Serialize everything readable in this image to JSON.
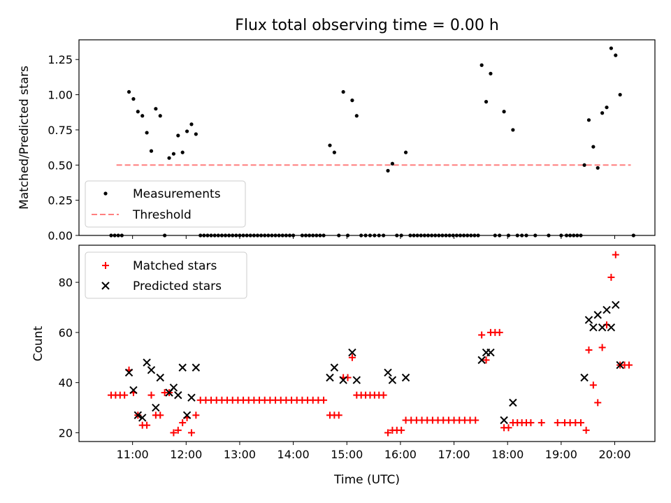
{
  "figure": {
    "title": "Flux total observing time = 0.00 h"
  },
  "chart_data": [
    {
      "type": "scatter",
      "ylabel": "Matched/Predicted stars",
      "xlabel": "",
      "x_tick_labels": [
        "11:00",
        "12:00",
        "13:00",
        "14:00",
        "15:00",
        "16:00",
        "17:00",
        "18:00",
        "19:00",
        "20:00"
      ],
      "xlim_hours": [
        10.0,
        20.75
      ],
      "ylim": [
        0.0,
        1.39
      ],
      "y_ticks": [
        "0.00",
        "0.25",
        "0.50",
        "0.75",
        "1.00",
        "1.25"
      ],
      "legend_placement": "lower-left",
      "colors": {
        "measurements": "#000000",
        "threshold": "#ff7f7f"
      },
      "threshold": {
        "name": "Threshold",
        "value": 0.5,
        "x_start": "10:42",
        "x_end": "20:18"
      },
      "series": [
        {
          "name": "Measurements",
          "points": [
            [
              "10:36",
              0
            ],
            [
              "10:40",
              0
            ],
            [
              "10:44",
              0
            ],
            [
              "10:48",
              0
            ],
            [
              "10:56",
              1.02
            ],
            [
              "11:01",
              0.97
            ],
            [
              "11:06",
              0.88
            ],
            [
              "11:11",
              0.85
            ],
            [
              "11:16",
              0.73
            ],
            [
              "11:21",
              0.6
            ],
            [
              "11:26",
              0.9
            ],
            [
              "11:31",
              0.85
            ],
            [
              "11:36",
              0
            ],
            [
              "11:41",
              0.55
            ],
            [
              "11:46",
              0.58
            ],
            [
              "11:51",
              0.71
            ],
            [
              "11:56",
              0.59
            ],
            [
              "12:01",
              0.74
            ],
            [
              "12:06",
              0.79
            ],
            [
              "12:11",
              0.72
            ],
            [
              "12:16",
              0
            ],
            [
              "12:20",
              0
            ],
            [
              "12:24",
              0
            ],
            [
              "12:28",
              0
            ],
            [
              "12:32",
              0
            ],
            [
              "12:36",
              0
            ],
            [
              "12:40",
              0
            ],
            [
              "12:44",
              0
            ],
            [
              "12:48",
              0
            ],
            [
              "12:52",
              0
            ],
            [
              "12:56",
              0
            ],
            [
              "13:00",
              0
            ],
            [
              "13:04",
              0
            ],
            [
              "13:08",
              0
            ],
            [
              "13:12",
              0
            ],
            [
              "13:16",
              0
            ],
            [
              "13:20",
              0
            ],
            [
              "13:24",
              0
            ],
            [
              "13:28",
              0
            ],
            [
              "13:32",
              0
            ],
            [
              "13:36",
              0
            ],
            [
              "13:40",
              0
            ],
            [
              "13:44",
              0
            ],
            [
              "13:48",
              0
            ],
            [
              "13:52",
              0
            ],
            [
              "13:56",
              0
            ],
            [
              "14:00",
              0
            ],
            [
              "14:10",
              0
            ],
            [
              "14:14",
              0
            ],
            [
              "14:18",
              0
            ],
            [
              "14:22",
              0
            ],
            [
              "14:26",
              0
            ],
            [
              "14:30",
              0
            ],
            [
              "14:34",
              0
            ],
            [
              "14:41",
              0.64
            ],
            [
              "14:46",
              0.59
            ],
            [
              "14:51",
              0
            ],
            [
              "14:56",
              1.02
            ],
            [
              "15:01",
              0
            ],
            [
              "15:06",
              0.96
            ],
            [
              "15:11",
              0.85
            ],
            [
              "15:16",
              0
            ],
            [
              "15:21",
              0
            ],
            [
              "15:26",
              0
            ],
            [
              "15:31",
              0
            ],
            [
              "15:36",
              0
            ],
            [
              "15:41",
              0
            ],
            [
              "15:46",
              0.46
            ],
            [
              "15:51",
              0.51
            ],
            [
              "15:56",
              0
            ],
            [
              "16:01",
              0
            ],
            [
              "16:06",
              0.59
            ],
            [
              "16:11",
              0
            ],
            [
              "16:15",
              0
            ],
            [
              "16:19",
              0
            ],
            [
              "16:23",
              0
            ],
            [
              "16:27",
              0
            ],
            [
              "16:31",
              0
            ],
            [
              "16:35",
              0
            ],
            [
              "16:39",
              0
            ],
            [
              "16:43",
              0
            ],
            [
              "16:47",
              0
            ],
            [
              "16:51",
              0
            ],
            [
              "16:55",
              0
            ],
            [
              "16:59",
              0
            ],
            [
              "17:03",
              0
            ],
            [
              "17:07",
              0
            ],
            [
              "17:11",
              0
            ],
            [
              "17:15",
              0
            ],
            [
              "17:19",
              0
            ],
            [
              "17:23",
              0
            ],
            [
              "17:27",
              0
            ],
            [
              "17:31",
              1.21
            ],
            [
              "17:36",
              0.95
            ],
            [
              "17:41",
              1.15
            ],
            [
              "17:46",
              0
            ],
            [
              "17:51",
              0
            ],
            [
              "17:56",
              0.88
            ],
            [
              "18:01",
              0
            ],
            [
              "18:06",
              0.75
            ],
            [
              "18:11",
              0
            ],
            [
              "18:16",
              0
            ],
            [
              "18:21",
              0
            ],
            [
              "18:31",
              0
            ],
            [
              "18:46",
              0
            ],
            [
              "19:00",
              0
            ],
            [
              "19:06",
              0
            ],
            [
              "19:10",
              0
            ],
            [
              "19:14",
              0
            ],
            [
              "19:18",
              0
            ],
            [
              "19:22",
              0
            ],
            [
              "19:26",
              0.5
            ],
            [
              "19:31",
              0.82
            ],
            [
              "19:36",
              0.63
            ],
            [
              "19:41",
              0.48
            ],
            [
              "19:46",
              0.87
            ],
            [
              "19:51",
              0.91
            ],
            [
              "19:56",
              1.33
            ],
            [
              "20:01",
              1.28
            ],
            [
              "20:06",
              1.0
            ],
            [
              "20:21",
              0
            ]
          ]
        }
      ]
    },
    {
      "type": "scatter",
      "ylabel": "Count",
      "xlabel": "Time (UTC)",
      "x_tick_labels": [
        "11:00",
        "12:00",
        "13:00",
        "14:00",
        "15:00",
        "16:00",
        "17:00",
        "18:00",
        "19:00",
        "20:00"
      ],
      "xlim_hours": [
        10.0,
        20.75
      ],
      "ylim": [
        16.5,
        94.8
      ],
      "y_ticks": [
        "20",
        "40",
        "60",
        "80"
      ],
      "legend_placement": "upper-left",
      "colors": {
        "matched": "#ff0000",
        "predicted": "#000000"
      },
      "series": [
        {
          "name": "Matched stars",
          "marker": "plus",
          "points": [
            [
              "10:36",
              35
            ],
            [
              "10:41",
              35
            ],
            [
              "10:46",
              35
            ],
            [
              "10:51",
              35
            ],
            [
              "10:56",
              45
            ],
            [
              "11:01",
              36
            ],
            [
              "11:06",
              27
            ],
            [
              "11:11",
              23
            ],
            [
              "11:16",
              23
            ],
            [
              "11:21",
              35
            ],
            [
              "11:26",
              27
            ],
            [
              "11:31",
              27
            ],
            [
              "11:36",
              36
            ],
            [
              "11:41",
              36
            ],
            [
              "11:46",
              20
            ],
            [
              "11:51",
              21
            ],
            [
              "11:56",
              24
            ],
            [
              "12:01",
              26
            ],
            [
              "12:06",
              20
            ],
            [
              "12:11",
              27
            ],
            [
              "12:16",
              33
            ],
            [
              "12:22",
              33
            ],
            [
              "12:28",
              33
            ],
            [
              "12:34",
              33
            ],
            [
              "12:40",
              33
            ],
            [
              "12:46",
              33
            ],
            [
              "12:52",
              33
            ],
            [
              "12:58",
              33
            ],
            [
              "13:04",
              33
            ],
            [
              "13:10",
              33
            ],
            [
              "13:16",
              33
            ],
            [
              "13:22",
              33
            ],
            [
              "13:28",
              33
            ],
            [
              "13:34",
              33
            ],
            [
              "13:40",
              33
            ],
            [
              "13:46",
              33
            ],
            [
              "13:52",
              33
            ],
            [
              "13:58",
              33
            ],
            [
              "14:04",
              33
            ],
            [
              "14:10",
              33
            ],
            [
              "14:16",
              33
            ],
            [
              "14:22",
              33
            ],
            [
              "14:28",
              33
            ],
            [
              "14:34",
              33
            ],
            [
              "14:41",
              27
            ],
            [
              "14:46",
              27
            ],
            [
              "14:51",
              27
            ],
            [
              "14:56",
              42
            ],
            [
              "15:01",
              42
            ],
            [
              "15:06",
              50
            ],
            [
              "15:11",
              35
            ],
            [
              "15:16",
              35
            ],
            [
              "15:21",
              35
            ],
            [
              "15:26",
              35
            ],
            [
              "15:31",
              35
            ],
            [
              "15:36",
              35
            ],
            [
              "15:41",
              35
            ],
            [
              "15:46",
              20
            ],
            [
              "15:51",
              21
            ],
            [
              "15:56",
              21
            ],
            [
              "16:01",
              21
            ],
            [
              "16:06",
              25
            ],
            [
              "16:12",
              25
            ],
            [
              "16:18",
              25
            ],
            [
              "16:24",
              25
            ],
            [
              "16:30",
              25
            ],
            [
              "16:36",
              25
            ],
            [
              "16:42",
              25
            ],
            [
              "16:48",
              25
            ],
            [
              "16:54",
              25
            ],
            [
              "17:00",
              25
            ],
            [
              "17:06",
              25
            ],
            [
              "17:12",
              25
            ],
            [
              "17:18",
              25
            ],
            [
              "17:24",
              25
            ],
            [
              "17:31",
              59
            ],
            [
              "17:36",
              49
            ],
            [
              "17:41",
              60
            ],
            [
              "17:46",
              60
            ],
            [
              "17:51",
              60
            ],
            [
              "17:56",
              22
            ],
            [
              "18:01",
              22
            ],
            [
              "18:06",
              24
            ],
            [
              "18:11",
              24
            ],
            [
              "18:16",
              24
            ],
            [
              "18:21",
              24
            ],
            [
              "18:26",
              24
            ],
            [
              "18:38",
              24
            ],
            [
              "18:56",
              24
            ],
            [
              "19:04",
              24
            ],
            [
              "19:10",
              24
            ],
            [
              "19:16",
              24
            ],
            [
              "19:22",
              24
            ],
            [
              "19:28",
              21
            ],
            [
              "19:31",
              53
            ],
            [
              "19:36",
              39
            ],
            [
              "19:41",
              32
            ],
            [
              "19:46",
              54
            ],
            [
              "19:51",
              63
            ],
            [
              "19:56",
              82
            ],
            [
              "20:01",
              91
            ],
            [
              "20:06",
              47
            ],
            [
              "20:11",
              47
            ],
            [
              "20:16",
              47
            ]
          ]
        },
        {
          "name": "Predicted stars",
          "marker": "x",
          "points": [
            [
              "10:56",
              44
            ],
            [
              "11:01",
              37
            ],
            [
              "11:06",
              27
            ],
            [
              "11:11",
              26
            ],
            [
              "11:16",
              48
            ],
            [
              "11:21",
              45
            ],
            [
              "11:26",
              30
            ],
            [
              "11:31",
              42
            ],
            [
              "11:41",
              36
            ],
            [
              "11:46",
              38
            ],
            [
              "11:51",
              35
            ],
            [
              "11:56",
              46
            ],
            [
              "12:01",
              27
            ],
            [
              "12:06",
              34
            ],
            [
              "12:11",
              46
            ],
            [
              "14:41",
              42
            ],
            [
              "14:46",
              46
            ],
            [
              "14:56",
              41
            ],
            [
              "15:06",
              52
            ],
            [
              "15:11",
              41
            ],
            [
              "15:46",
              44
            ],
            [
              "15:51",
              41
            ],
            [
              "16:06",
              42
            ],
            [
              "17:31",
              49
            ],
            [
              "17:36",
              52
            ],
            [
              "17:41",
              52
            ],
            [
              "17:56",
              25
            ],
            [
              "18:06",
              32
            ],
            [
              "19:26",
              42
            ],
            [
              "19:31",
              65
            ],
            [
              "19:36",
              62
            ],
            [
              "19:41",
              67
            ],
            [
              "19:46",
              62
            ],
            [
              "19:51",
              69
            ],
            [
              "19:56",
              62
            ],
            [
              "20:01",
              71
            ],
            [
              "20:06",
              47
            ]
          ]
        }
      ]
    }
  ]
}
